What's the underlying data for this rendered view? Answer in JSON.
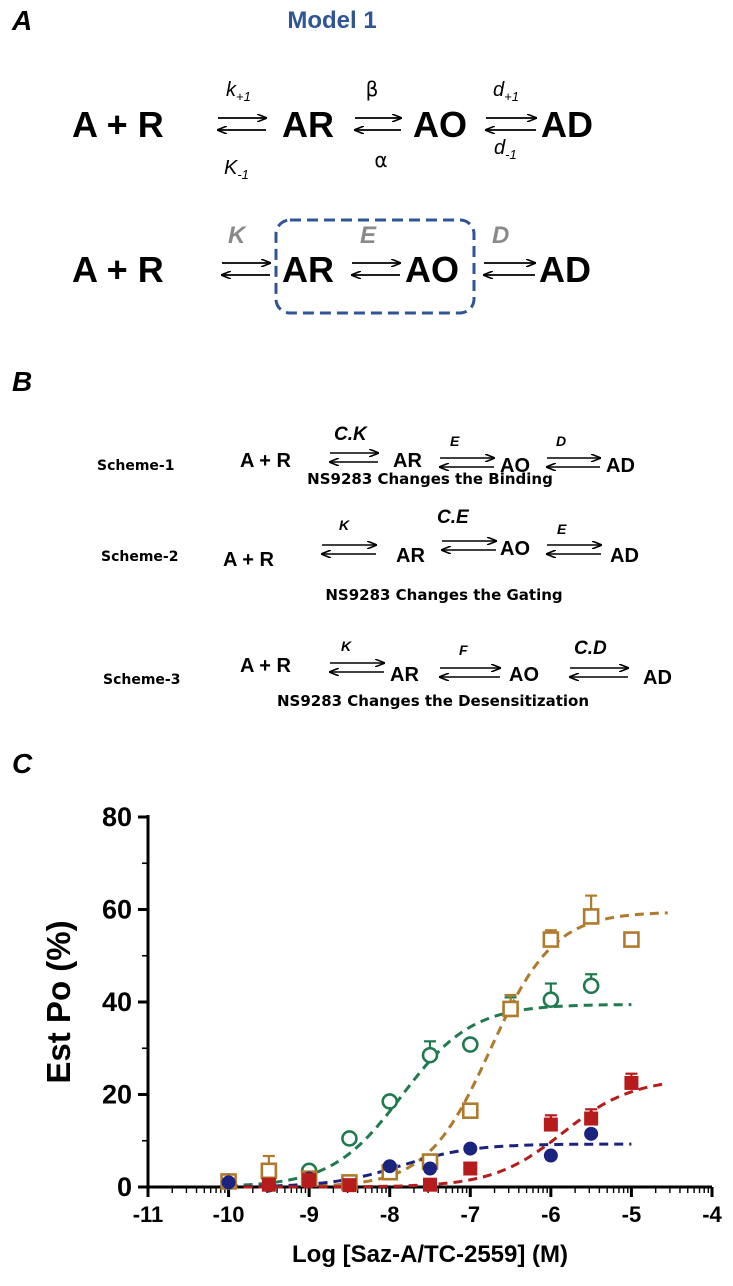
{
  "panelA": {
    "letter": "A",
    "title": "Model 1",
    "row1": {
      "species": [
        "A + R",
        "AR",
        "AO",
        "AD"
      ],
      "rates": {
        "k_fwd": "k",
        "k_fwd_sub": "+1",
        "k_back": "K",
        "k_back_sub": "-1",
        "beta": "β",
        "alpha": "α",
        "d_fwd": "d",
        "d_fwd_sub": "+1",
        "d_back": "d",
        "d_back_sub": "-1"
      }
    },
    "row2": {
      "species": [
        "A + R",
        "AR",
        "AO",
        "AD"
      ],
      "labels": [
        "K",
        "E",
        "D"
      ],
      "box_color": "#2f5597"
    }
  },
  "panelB": {
    "letter": "B",
    "schemes": [
      {
        "name": "Scheme-1",
        "species": [
          "A + R",
          "AR",
          "AO",
          "AD"
        ],
        "rates": [
          "C.K",
          "E",
          "D"
        ],
        "caption": "NS9283 Changes the Binding"
      },
      {
        "name": "Scheme-2",
        "species": [
          "A + R",
          "AR",
          "AO",
          "AD"
        ],
        "rates": [
          "K",
          "C.E",
          "E"
        ],
        "caption": "NS9283 Changes the Gating"
      },
      {
        "name": "Scheme-3",
        "species": [
          "A + R",
          "AR",
          "AO",
          "AD"
        ],
        "rates": [
          "K",
          "F",
          "C.D"
        ],
        "caption": "NS9283 Changes the Desensitization"
      }
    ]
  },
  "panelC": {
    "letter": "C",
    "chart_data": {
      "type": "scatter",
      "title": "",
      "xlabel": "Log [Saz-A/TC-2559] (M)",
      "ylabel": "Est Po (%)",
      "xlim": [
        -11,
        -4
      ],
      "ylim": [
        0,
        80
      ],
      "xticks": [
        "-11",
        "-10",
        "-9",
        "-8",
        "-7",
        "-6",
        "-5",
        "-4"
      ],
      "yticks": [
        "0",
        "20",
        "40",
        "60",
        "80"
      ],
      "grid": false,
      "series": [
        {
          "color": "#1f7a4f",
          "marker": "open-circle",
          "x": [
            -10,
            -9.5,
            -9,
            -8.5,
            -8,
            -7.5,
            -7,
            -6.5,
            -6,
            -5.5
          ],
          "y": [
            1.2,
            2.5,
            3.5,
            10.5,
            18.5,
            28.5,
            30.8,
            38.5,
            40.5,
            43.5
          ],
          "err": [
            0,
            0,
            0,
            0,
            0,
            3,
            0,
            2.5,
            3.5,
            2.5
          ],
          "fit": {
            "bottom": 0,
            "top": 39.5,
            "logEC50": -7.85,
            "hill": 1.0,
            "xmin": -10,
            "xmax": -5
          }
        },
        {
          "color": "#b07a2c",
          "marker": "open-square",
          "x": [
            -10,
            -9.5,
            -9,
            -8.5,
            -8,
            -7.5,
            -7,
            -6.5,
            -6,
            -5.5,
            -5
          ],
          "y": [
            1.2,
            3.5,
            1.8,
            1.0,
            3.2,
            5.5,
            16.5,
            38.5,
            53.5,
            58.5,
            53.5
          ],
          "err": [
            0,
            3.2,
            0,
            0,
            0,
            0,
            0,
            3.0,
            2.0,
            4.5,
            0
          ],
          "fit": {
            "bottom": 0,
            "top": 59.5,
            "logEC50": -6.75,
            "hill": 1.1,
            "xmin": -10,
            "xmax": -4.55
          }
        },
        {
          "color": "#1a237e",
          "marker": "filled-circle",
          "x": [
            -10,
            -9.5,
            -9,
            -8,
            -7.5,
            -7,
            -6,
            -5.5
          ],
          "y": [
            1.0,
            0.3,
            1.8,
            4.5,
            4.0,
            8.3,
            6.8,
            11.5
          ],
          "err": [
            0,
            0,
            0,
            0,
            0,
            0,
            0,
            0
          ],
          "fit": {
            "bottom": 0,
            "top": 9.3,
            "logEC50": -7.85,
            "hill": 1.0,
            "xmin": -10,
            "xmax": -5
          }
        },
        {
          "color": "#b71c1c",
          "marker": "filled-square",
          "x": [
            -9.5,
            -9,
            -8.5,
            -7.5,
            -7,
            -6,
            -5.5,
            -5
          ],
          "y": [
            0.5,
            1.5,
            0.4,
            0.5,
            4.0,
            13.5,
            14.8,
            22.5
          ],
          "err": [
            0,
            0,
            0,
            0,
            0,
            2.0,
            2.0,
            2.0
          ],
          "fit": {
            "bottom": 0,
            "top": 23.5,
            "logEC50": -5.85,
            "hill": 1.0,
            "xmin": -10,
            "xmax": -4.55
          }
        }
      ]
    }
  }
}
